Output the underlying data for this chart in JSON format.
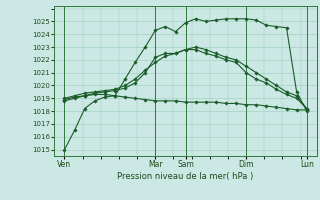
{
  "title": "",
  "xlabel": "Pression niveau de la mer( hPa )",
  "background_color": "#cce8e4",
  "grid_color": "#99ccbb",
  "line_color": "#1a5c2a",
  "ylim": [
    1014.5,
    1026.2
  ],
  "xlim": [
    0,
    13
  ],
  "day_labels": [
    "Ven",
    "Mar",
    "Sam",
    "Dim",
    "Lun"
  ],
  "day_positions": [
    0.5,
    5.0,
    6.5,
    9.5,
    12.5
  ],
  "vline_positions": [
    0.5,
    5.0,
    6.5,
    9.5,
    12.5
  ],
  "series": [
    {
      "x": [
        0.5,
        1.0,
        1.5,
        2.0,
        2.5,
        3.0,
        3.5,
        4.0,
        4.5,
        5.0,
        5.5,
        6.0,
        6.5,
        7.0,
        7.5,
        8.0,
        8.5,
        9.0,
        9.5,
        10.0,
        10.5,
        11.0,
        11.5,
        12.0,
        12.5
      ],
      "y": [
        1015.0,
        1016.5,
        1018.2,
        1018.8,
        1019.1,
        1019.2,
        1020.5,
        1021.8,
        1023.0,
        1024.3,
        1024.6,
        1024.2,
        1024.9,
        1025.2,
        1025.0,
        1025.1,
        1025.2,
        1025.2,
        1025.2,
        1025.1,
        1024.7,
        1024.6,
        1024.5,
        1019.5,
        1018.0
      ]
    },
    {
      "x": [
        0.5,
        1.0,
        1.5,
        2.0,
        2.5,
        3.0,
        3.5,
        4.0,
        4.5,
        5.0,
        5.5,
        6.0,
        6.5,
        7.0,
        7.5,
        8.0,
        8.5,
        9.0,
        9.5,
        10.0,
        10.5,
        11.0,
        11.5,
        12.0,
        12.5
      ],
      "y": [
        1018.9,
        1019.1,
        1019.2,
        1019.4,
        1019.5,
        1019.6,
        1019.8,
        1020.2,
        1021.0,
        1022.2,
        1022.5,
        1022.5,
        1022.8,
        1023.0,
        1022.8,
        1022.5,
        1022.2,
        1022.0,
        1021.5,
        1021.0,
        1020.5,
        1020.0,
        1019.5,
        1019.2,
        1018.2
      ]
    },
    {
      "x": [
        0.5,
        1.0,
        1.5,
        2.0,
        2.5,
        3.0,
        3.5,
        4.0,
        4.5,
        5.0,
        5.5,
        6.0,
        6.5,
        7.0,
        7.5,
        8.0,
        8.5,
        9.0,
        9.5,
        10.0,
        10.5,
        11.0,
        11.5,
        12.0,
        12.5
      ],
      "y": [
        1018.8,
        1019.0,
        1019.2,
        1019.3,
        1019.3,
        1019.2,
        1019.1,
        1019.0,
        1018.9,
        1018.8,
        1018.8,
        1018.8,
        1018.7,
        1018.7,
        1018.7,
        1018.7,
        1018.6,
        1018.6,
        1018.5,
        1018.5,
        1018.4,
        1018.3,
        1018.2,
        1018.1,
        1018.1
      ]
    },
    {
      "x": [
        0.5,
        1.0,
        1.5,
        2.0,
        2.5,
        3.0,
        3.5,
        4.0,
        4.5,
        5.0,
        5.5,
        6.0,
        6.5,
        7.0,
        7.5,
        8.0,
        8.5,
        9.0,
        9.5,
        10.0,
        10.5,
        11.0,
        11.5,
        12.0,
        12.5
      ],
      "y": [
        1019.0,
        1019.2,
        1019.4,
        1019.5,
        1019.6,
        1019.7,
        1020.0,
        1020.5,
        1021.2,
        1021.8,
        1022.3,
        1022.5,
        1022.8,
        1022.8,
        1022.5,
        1022.3,
        1022.0,
        1021.8,
        1021.0,
        1020.5,
        1020.2,
        1019.7,
        1019.3,
        1019.0,
        1018.2
      ]
    }
  ],
  "yticks": [
    1015,
    1016,
    1017,
    1018,
    1019,
    1020,
    1021,
    1022,
    1023,
    1024,
    1025
  ],
  "marker": "D",
  "markersize": 1.8,
  "linewidth": 0.8
}
